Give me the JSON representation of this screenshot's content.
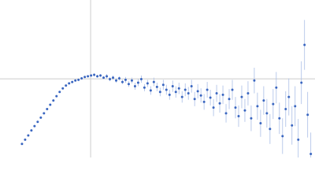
{
  "chart_data": {
    "type": "scatter",
    "xlim": [
      0,
      6.02
    ],
    "ylim": [
      0,
      2.21
    ],
    "hline": 1.104,
    "vline": 1.732,
    "color": "#3a66c0",
    "error_color": "#a9bde6",
    "guide_color": "#cccccc",
    "x": [
      0.42,
      0.48,
      0.54,
      0.6,
      0.66,
      0.72,
      0.78,
      0.84,
      0.9,
      0.96,
      1.02,
      1.08,
      1.14,
      1.2,
      1.26,
      1.32,
      1.38,
      1.44,
      1.5,
      1.56,
      1.62,
      1.68,
      1.74,
      1.8,
      1.86,
      1.92,
      1.98,
      2.04,
      2.1,
      2.16,
      2.22,
      2.28,
      2.34,
      2.4,
      2.46,
      2.52,
      2.58,
      2.64,
      2.7,
      2.76,
      2.82,
      2.88,
      2.94,
      3.0,
      3.06,
      3.12,
      3.18,
      3.24,
      3.3,
      3.36,
      3.42,
      3.48,
      3.54,
      3.6,
      3.66,
      3.72,
      3.78,
      3.84,
      3.9,
      3.96,
      4.02,
      4.08,
      4.14,
      4.2,
      4.26,
      4.32,
      4.38,
      4.44,
      4.5,
      4.56,
      4.62,
      4.68,
      4.74,
      4.8,
      4.86,
      4.92,
      4.98,
      5.04,
      5.1,
      5.16,
      5.22,
      5.28,
      5.34,
      5.4,
      5.46,
      5.52,
      5.58,
      5.64,
      5.7,
      5.76,
      5.82,
      5.88,
      5.94
    ],
    "values": [
      0.19,
      0.25,
      0.31,
      0.38,
      0.44,
      0.5,
      0.56,
      0.62,
      0.68,
      0.74,
      0.8,
      0.86,
      0.92,
      0.97,
      1.01,
      1.04,
      1.06,
      1.08,
      1.09,
      1.11,
      1.13,
      1.14,
      1.15,
      1.16,
      1.14,
      1.15,
      1.12,
      1.14,
      1.1,
      1.12,
      1.08,
      1.11,
      1.06,
      1.09,
      1.03,
      1.08,
      1.0,
      1.05,
      1.1,
      0.98,
      1.04,
      0.94,
      1.06,
      0.99,
      0.92,
      1.02,
      0.95,
      0.88,
      1.0,
      0.92,
      0.97,
      0.85,
      0.95,
      0.9,
      1.0,
      0.82,
      0.93,
      0.87,
      0.78,
      0.95,
      0.84,
      0.7,
      0.9,
      0.76,
      0.88,
      0.62,
      0.82,
      0.95,
      0.7,
      0.58,
      0.85,
      0.66,
      0.9,
      0.55,
      1.08,
      0.72,
      0.48,
      0.8,
      0.62,
      0.4,
      0.75,
      0.98,
      0.55,
      0.3,
      0.68,
      0.85,
      0.45,
      0.72,
      0.25,
      1.05,
      1.58,
      0.6,
      0.05
    ],
    "errors": [
      0.01,
      0.01,
      0.01,
      0.01,
      0.01,
      0.01,
      0.01,
      0.01,
      0.01,
      0.01,
      0.01,
      0.01,
      0.01,
      0.01,
      0.01,
      0.01,
      0.01,
      0.01,
      0.01,
      0.01,
      0.01,
      0.01,
      0.01,
      0.02,
      0.02,
      0.02,
      0.02,
      0.03,
      0.03,
      0.03,
      0.03,
      0.03,
      0.03,
      0.04,
      0.04,
      0.04,
      0.05,
      0.05,
      0.05,
      0.05,
      0.05,
      0.06,
      0.06,
      0.06,
      0.06,
      0.07,
      0.07,
      0.07,
      0.08,
      0.08,
      0.08,
      0.08,
      0.09,
      0.09,
      0.09,
      0.1,
      0.1,
      0.1,
      0.11,
      0.11,
      0.11,
      0.12,
      0.12,
      0.13,
      0.13,
      0.13,
      0.14,
      0.14,
      0.15,
      0.15,
      0.16,
      0.16,
      0.17,
      0.18,
      0.18,
      0.19,
      0.19,
      0.2,
      0.2,
      0.21,
      0.21,
      0.22,
      0.22,
      0.25,
      0.25,
      0.26,
      0.27,
      0.28,
      0.29,
      0.3,
      0.35,
      0.32,
      0.3
    ]
  }
}
